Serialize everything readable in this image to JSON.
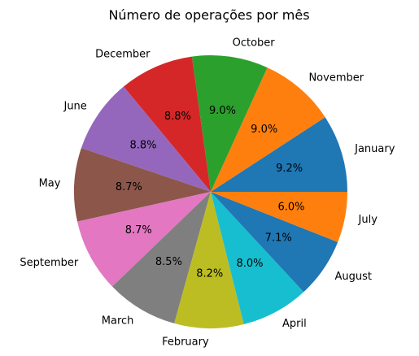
{
  "chart_data": {
    "type": "pie",
    "title": "Número de operações por mês",
    "start_angle_deg": 0,
    "direction": "counterclockwise",
    "legend": "none",
    "slices": [
      {
        "label": "January",
        "value": 9.2,
        "pct_label": "9.2%",
        "color": "#1f77b4"
      },
      {
        "label": "November",
        "value": 9.0,
        "pct_label": "9.0%",
        "color": "#ff7f0e"
      },
      {
        "label": "October",
        "value": 9.0,
        "pct_label": "9.0%",
        "color": "#2ca02c"
      },
      {
        "label": "December",
        "value": 8.8,
        "pct_label": "8.8%",
        "color": "#d62728"
      },
      {
        "label": "June",
        "value": 8.8,
        "pct_label": "8.8%",
        "color": "#9467bd"
      },
      {
        "label": "May",
        "value": 8.7,
        "pct_label": "8.7%",
        "color": "#8c564b"
      },
      {
        "label": "September",
        "value": 8.7,
        "pct_label": "8.7%",
        "color": "#e377c2"
      },
      {
        "label": "March",
        "value": 8.5,
        "pct_label": "8.5%",
        "color": "#7f7f7f"
      },
      {
        "label": "February",
        "value": 8.2,
        "pct_label": "8.2%",
        "color": "#bcbd22"
      },
      {
        "label": "April",
        "value": 8.0,
        "pct_label": "8.0%",
        "color": "#17becf"
      },
      {
        "label": "August",
        "value": 7.1,
        "pct_label": "7.1%",
        "color": "#1f77b4"
      },
      {
        "label": "July",
        "value": 6.0,
        "pct_label": "6.0%",
        "color": "#ff7f0e"
      }
    ]
  }
}
